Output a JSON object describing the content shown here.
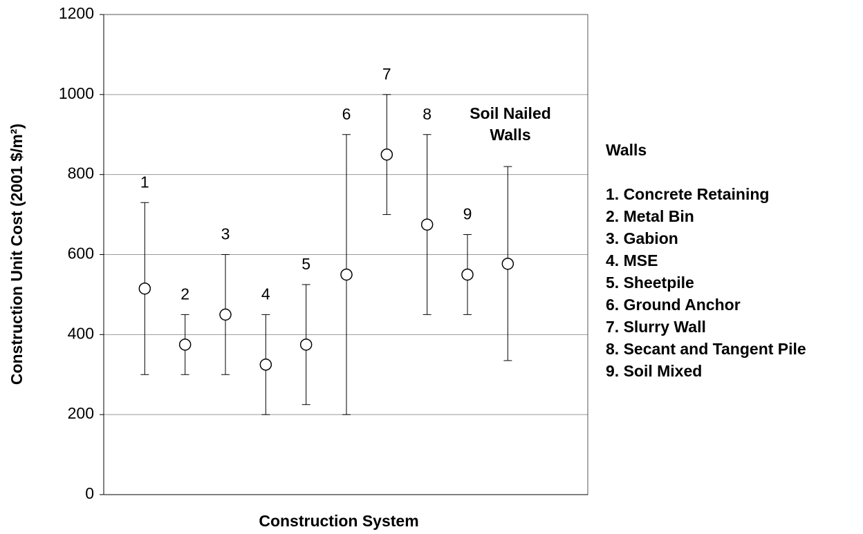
{
  "chart_data": {
    "type": "range",
    "ylabel": "Construction Unit Cost (2001 $/m²)",
    "xlabel": "Construction System",
    "categories": [
      "1",
      "2",
      "3",
      "4",
      "5",
      "6",
      "7",
      "8",
      "9",
      null
    ],
    "values": [
      515,
      375,
      450,
      325,
      375,
      550,
      850,
      675,
      550,
      577
    ],
    "lows": [
      300,
      300,
      300,
      200,
      225,
      200,
      700,
      450,
      450,
      335
    ],
    "highs": [
      730,
      450,
      600,
      450,
      525,
      900,
      1000,
      900,
      650,
      820
    ],
    "annotation": [
      "Soil Nailed",
      "Walls"
    ],
    "legend_title": "Walls",
    "legend": [
      "1. Concrete Retaining",
      "2. Metal Bin",
      "3. Gabion",
      "4. MSE",
      "5. Sheetpile",
      "6. Ground Anchor",
      "7. Slurry Wall",
      "8. Secant and Tangent Pile",
      "9. Soil Mixed"
    ],
    "ylim": [
      0,
      1200
    ],
    "yticks": [
      0,
      200,
      400,
      600,
      800,
      1000,
      1200
    ],
    "grid": true,
    "color": "#000000"
  }
}
